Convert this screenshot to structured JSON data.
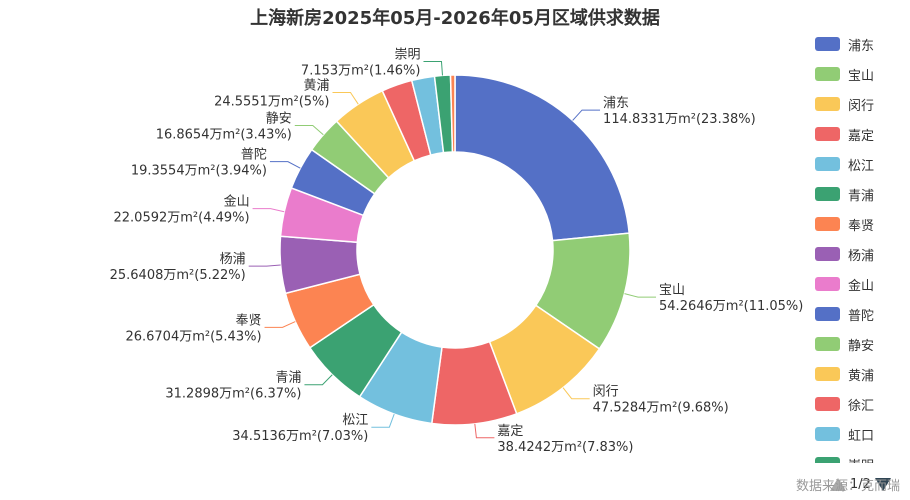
{
  "chart_data": {
    "type": "pie",
    "variant": "donut",
    "title": "上海新房2025年05月-2026年05月区域供求数据",
    "unit": "万m²",
    "slices": [
      {
        "name": "浦东",
        "value": 114.8331,
        "percent": "23.38%",
        "color": "#5470c6"
      },
      {
        "name": "宝山",
        "value": 54.2646,
        "percent": "11.05%",
        "color": "#91cc75"
      },
      {
        "name": "闵行",
        "value": 47.5284,
        "percent": "9.68%",
        "color": "#fac858"
      },
      {
        "name": "嘉定",
        "value": 38.4242,
        "percent": "7.83%",
        "color": "#ee6666"
      },
      {
        "name": "松江",
        "value": 34.5136,
        "percent": "7.03%",
        "color": "#73c0de"
      },
      {
        "name": "青浦",
        "value": 31.2898,
        "percent": "6.37%",
        "color": "#3ba272"
      },
      {
        "name": "奉贤",
        "value": 26.6704,
        "percent": "5.43%",
        "color": "#fc8452"
      },
      {
        "name": "杨浦",
        "value": 25.6408,
        "percent": "5.22%",
        "color": "#9a60b4"
      },
      {
        "name": "金山",
        "value": 22.0592,
        "percent": "4.49%",
        "color": "#ea7ccc"
      },
      {
        "name": "普陀",
        "value": 19.3554,
        "percent": "3.94%",
        "color": "#5470c6"
      },
      {
        "name": "静安",
        "value": 16.8654,
        "percent": "3.43%",
        "color": "#91cc75"
      },
      {
        "name": "黄浦",
        "value": 24.5551,
        "percent": "5%",
        "color": "#fac858"
      },
      {
        "name": "徐汇",
        "value": 13.9,
        "percent": "",
        "color": "#ee6666"
      },
      {
        "name": "虹口",
        "value": 10.3,
        "percent": "",
        "color": "#73c0de"
      },
      {
        "name": "崇明",
        "value": 7.153,
        "percent": "1.46%",
        "color": "#3ba272"
      },
      {
        "name": "",
        "value": 2.0,
        "percent": "",
        "color": "#fc8452"
      }
    ],
    "legend": {
      "position": "right",
      "items": [
        "浦东",
        "宝山",
        "闵行",
        "嘉定",
        "松江",
        "青浦",
        "奉贤",
        "杨浦",
        "金山",
        "普陀",
        "静安",
        "黄浦",
        "徐汇",
        "虹口",
        "崇明"
      ],
      "page": "1/2"
    }
  },
  "source_note": "数据来源：克而瑞"
}
